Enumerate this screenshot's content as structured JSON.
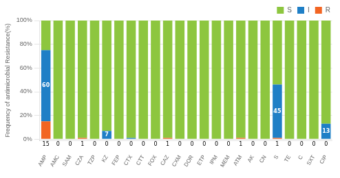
{
  "chart_data": {
    "type": "bar",
    "stacked": true,
    "categories": [
      "AMP",
      "AMC",
      "SAM",
      "CZA",
      "TZP",
      "KZ",
      "FEP",
      "CTX",
      "CTT",
      "FOX",
      "CAZ",
      "CXM",
      "DOR",
      "ETP",
      "IPM",
      "MEM",
      "ATM",
      "AK",
      "CN",
      "S",
      "TE",
      "C",
      "SXT",
      "CIP"
    ],
    "series": [
      {
        "name": "R",
        "color": "#F26522",
        "data_labels": true,
        "values": [
          15,
          0,
          0,
          1,
          0,
          0,
          0,
          0,
          0,
          0,
          1,
          0,
          0,
          0,
          0,
          0,
          1,
          0,
          0,
          1,
          0,
          0,
          0,
          0
        ]
      },
      {
        "name": "I",
        "color": "#1F7FC6",
        "data_labels": true,
        "values": [
          60,
          0,
          0,
          0,
          0,
          7,
          0,
          1,
          0,
          0,
          0,
          0,
          0,
          0,
          0,
          0,
          0,
          0,
          0,
          45,
          0,
          0,
          0,
          13
        ],
        "value_labels": [
          "60",
          null,
          null,
          null,
          null,
          "7",
          null,
          null,
          null,
          null,
          null,
          null,
          null,
          null,
          null,
          null,
          null,
          null,
          null,
          "45",
          null,
          null,
          null,
          "13"
        ]
      },
      {
        "name": "S",
        "color": "#8DC63F",
        "values": [
          25,
          100,
          100,
          99,
          100,
          93,
          100,
          99,
          100,
          100,
          99,
          100,
          100,
          100,
          100,
          100,
          99,
          100,
          100,
          54,
          100,
          100,
          100,
          87
        ]
      }
    ],
    "ylabel": "Frequency of antimicrobial Resistance(%)",
    "ylim": [
      -1,
      100
    ],
    "yticks": [
      {
        "value": 0,
        "label": "0%"
      },
      {
        "value": 20,
        "label": "20%"
      },
      {
        "value": 40,
        "label": "40%"
      },
      {
        "value": 60,
        "label": "60%"
      },
      {
        "value": 80,
        "label": "80%"
      },
      {
        "value": 100,
        "label": "100%"
      }
    ],
    "grid": true,
    "legend": "upper right"
  }
}
